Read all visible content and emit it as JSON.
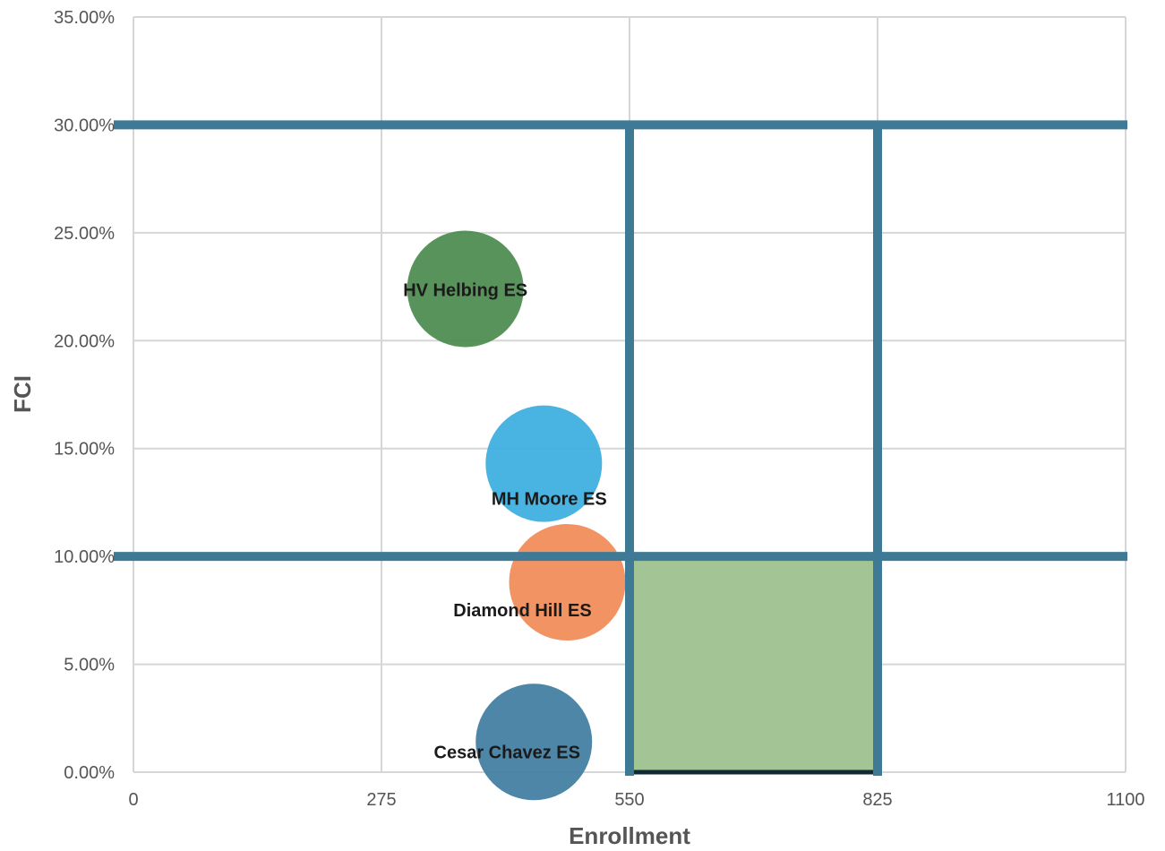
{
  "chart_data": {
    "type": "scatter",
    "xlabel": "Enrollment",
    "ylabel": "FCI",
    "xlim": [
      0,
      1100
    ],
    "ylim": [
      0,
      0.35
    ],
    "x_ticks": [
      {
        "value": 0,
        "label": "0"
      },
      {
        "value": 275,
        "label": "275"
      },
      {
        "value": 550,
        "label": "550"
      },
      {
        "value": 825,
        "label": "825"
      },
      {
        "value": 1100,
        "label": "1100"
      }
    ],
    "y_ticks": [
      {
        "value": 0,
        "label": "0.00%"
      },
      {
        "value": 0.05,
        "label": "5.00%"
      },
      {
        "value": 0.1,
        "label": "10.00%"
      },
      {
        "value": 0.15,
        "label": "15.00%"
      },
      {
        "value": 0.2,
        "label": "20.00%"
      },
      {
        "value": 0.25,
        "label": "25.00%"
      },
      {
        "value": 0.3,
        "label": "30.00%"
      },
      {
        "value": 0.35,
        "label": "35.00%"
      }
    ],
    "grid": true,
    "series": [
      {
        "name": "HV Helbing ES",
        "x": 368,
        "y": 0.224,
        "color": "#4a8a4d"
      },
      {
        "name": "MH Moore ES",
        "x": 455,
        "y": 0.143,
        "color": "#3aaede"
      },
      {
        "name": "Diamond Hill ES",
        "x": 481,
        "y": 0.088,
        "color": "#f08a55"
      },
      {
        "name": "Cesar Chavez ES",
        "x": 444,
        "y": 0.014,
        "color": "#3e7c9e"
      }
    ],
    "reference_lines": {
      "horizontal": [
        0.1,
        0.3
      ],
      "vertical": [
        550,
        825
      ],
      "color": "#3e7a96"
    },
    "target_region": {
      "x": [
        550,
        825
      ],
      "y": [
        0,
        0.1
      ],
      "fill": "#a3c596",
      "stroke": "#0f2a33"
    }
  }
}
